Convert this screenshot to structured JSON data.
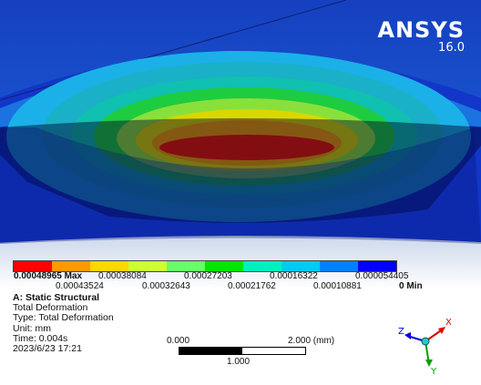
{
  "brand": {
    "name": "ANSYS",
    "version": "16.0"
  },
  "legend": {
    "colors": [
      "#ff0000",
      "#ff9900",
      "#ffd700",
      "#ccff33",
      "#66ff66",
      "#00e600",
      "#00f0c0",
      "#00ccf0",
      "#0080ff",
      "#0000ff"
    ],
    "top_labels": [
      "0.00048965 Max",
      "0.00038084",
      "0.00027203",
      "0.00016322",
      "0.000054405"
    ],
    "bottom_labels": [
      "0.00043524",
      "0.00032643",
      "0.00021762",
      "0.00010881",
      "0 Min"
    ]
  },
  "info": {
    "analysis": "A: Static Structural",
    "result": "Total Deformation",
    "type": "Type: Total Deformation",
    "unit": "Unit: mm",
    "time": "Time: 0.004s",
    "date": "2023/6/23 17:21"
  },
  "scale": {
    "left": "0.000",
    "right": "2.000 (mm)",
    "mid": "1.000"
  },
  "triad": {
    "x": "X",
    "y": "Y",
    "z": "Z",
    "x_color": "#e00000",
    "y_color": "#00a000",
    "z_color": "#0000e0"
  },
  "colors": {
    "background_top": "#1540c0",
    "background_bottom": "#ffffff"
  }
}
